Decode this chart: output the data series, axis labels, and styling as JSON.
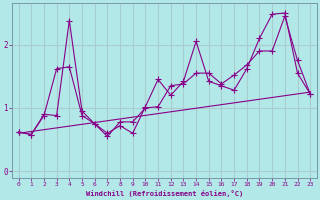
{
  "xlabel": "Windchill (Refroidissement éolien,°C)",
  "background_color": "#b2e8e8",
  "line_color": "#880088",
  "grid_color": "#aacccc",
  "xlim": [
    -0.5,
    23.5
  ],
  "ylim": [
    -0.1,
    2.65
  ],
  "xticks": [
    0,
    1,
    2,
    3,
    4,
    5,
    6,
    7,
    8,
    9,
    10,
    11,
    12,
    13,
    14,
    15,
    16,
    17,
    18,
    19,
    20,
    21,
    22,
    23
  ],
  "yticks": [
    0,
    1,
    2
  ],
  "jagged_x": [
    0,
    1,
    2,
    3,
    4,
    5,
    6,
    7,
    8,
    9,
    10,
    11,
    12,
    13,
    14,
    15,
    16,
    17,
    18,
    19,
    20,
    21,
    22,
    23
  ],
  "jagged_y": [
    0.62,
    0.58,
    0.9,
    0.88,
    2.38,
    0.95,
    0.75,
    0.6,
    0.72,
    0.6,
    1.02,
    1.45,
    1.2,
    1.42,
    2.05,
    1.42,
    1.35,
    1.28,
    1.62,
    2.1,
    2.48,
    2.5,
    1.55,
    1.22
  ],
  "smooth_x": [
    0,
    1,
    2,
    3,
    4,
    5,
    6,
    7,
    8,
    9,
    10,
    11,
    12,
    13,
    14,
    15,
    16,
    17,
    18,
    19,
    20,
    21,
    22,
    23
  ],
  "smooth_y": [
    0.62,
    0.58,
    0.88,
    1.62,
    1.65,
    0.88,
    0.75,
    0.55,
    0.78,
    0.78,
    1.0,
    1.02,
    1.35,
    1.38,
    1.55,
    1.55,
    1.38,
    1.52,
    1.68,
    1.9,
    1.9,
    2.45,
    1.75,
    1.22
  ],
  "trend_x": [
    0,
    23
  ],
  "trend_y": [
    0.6,
    1.25
  ]
}
